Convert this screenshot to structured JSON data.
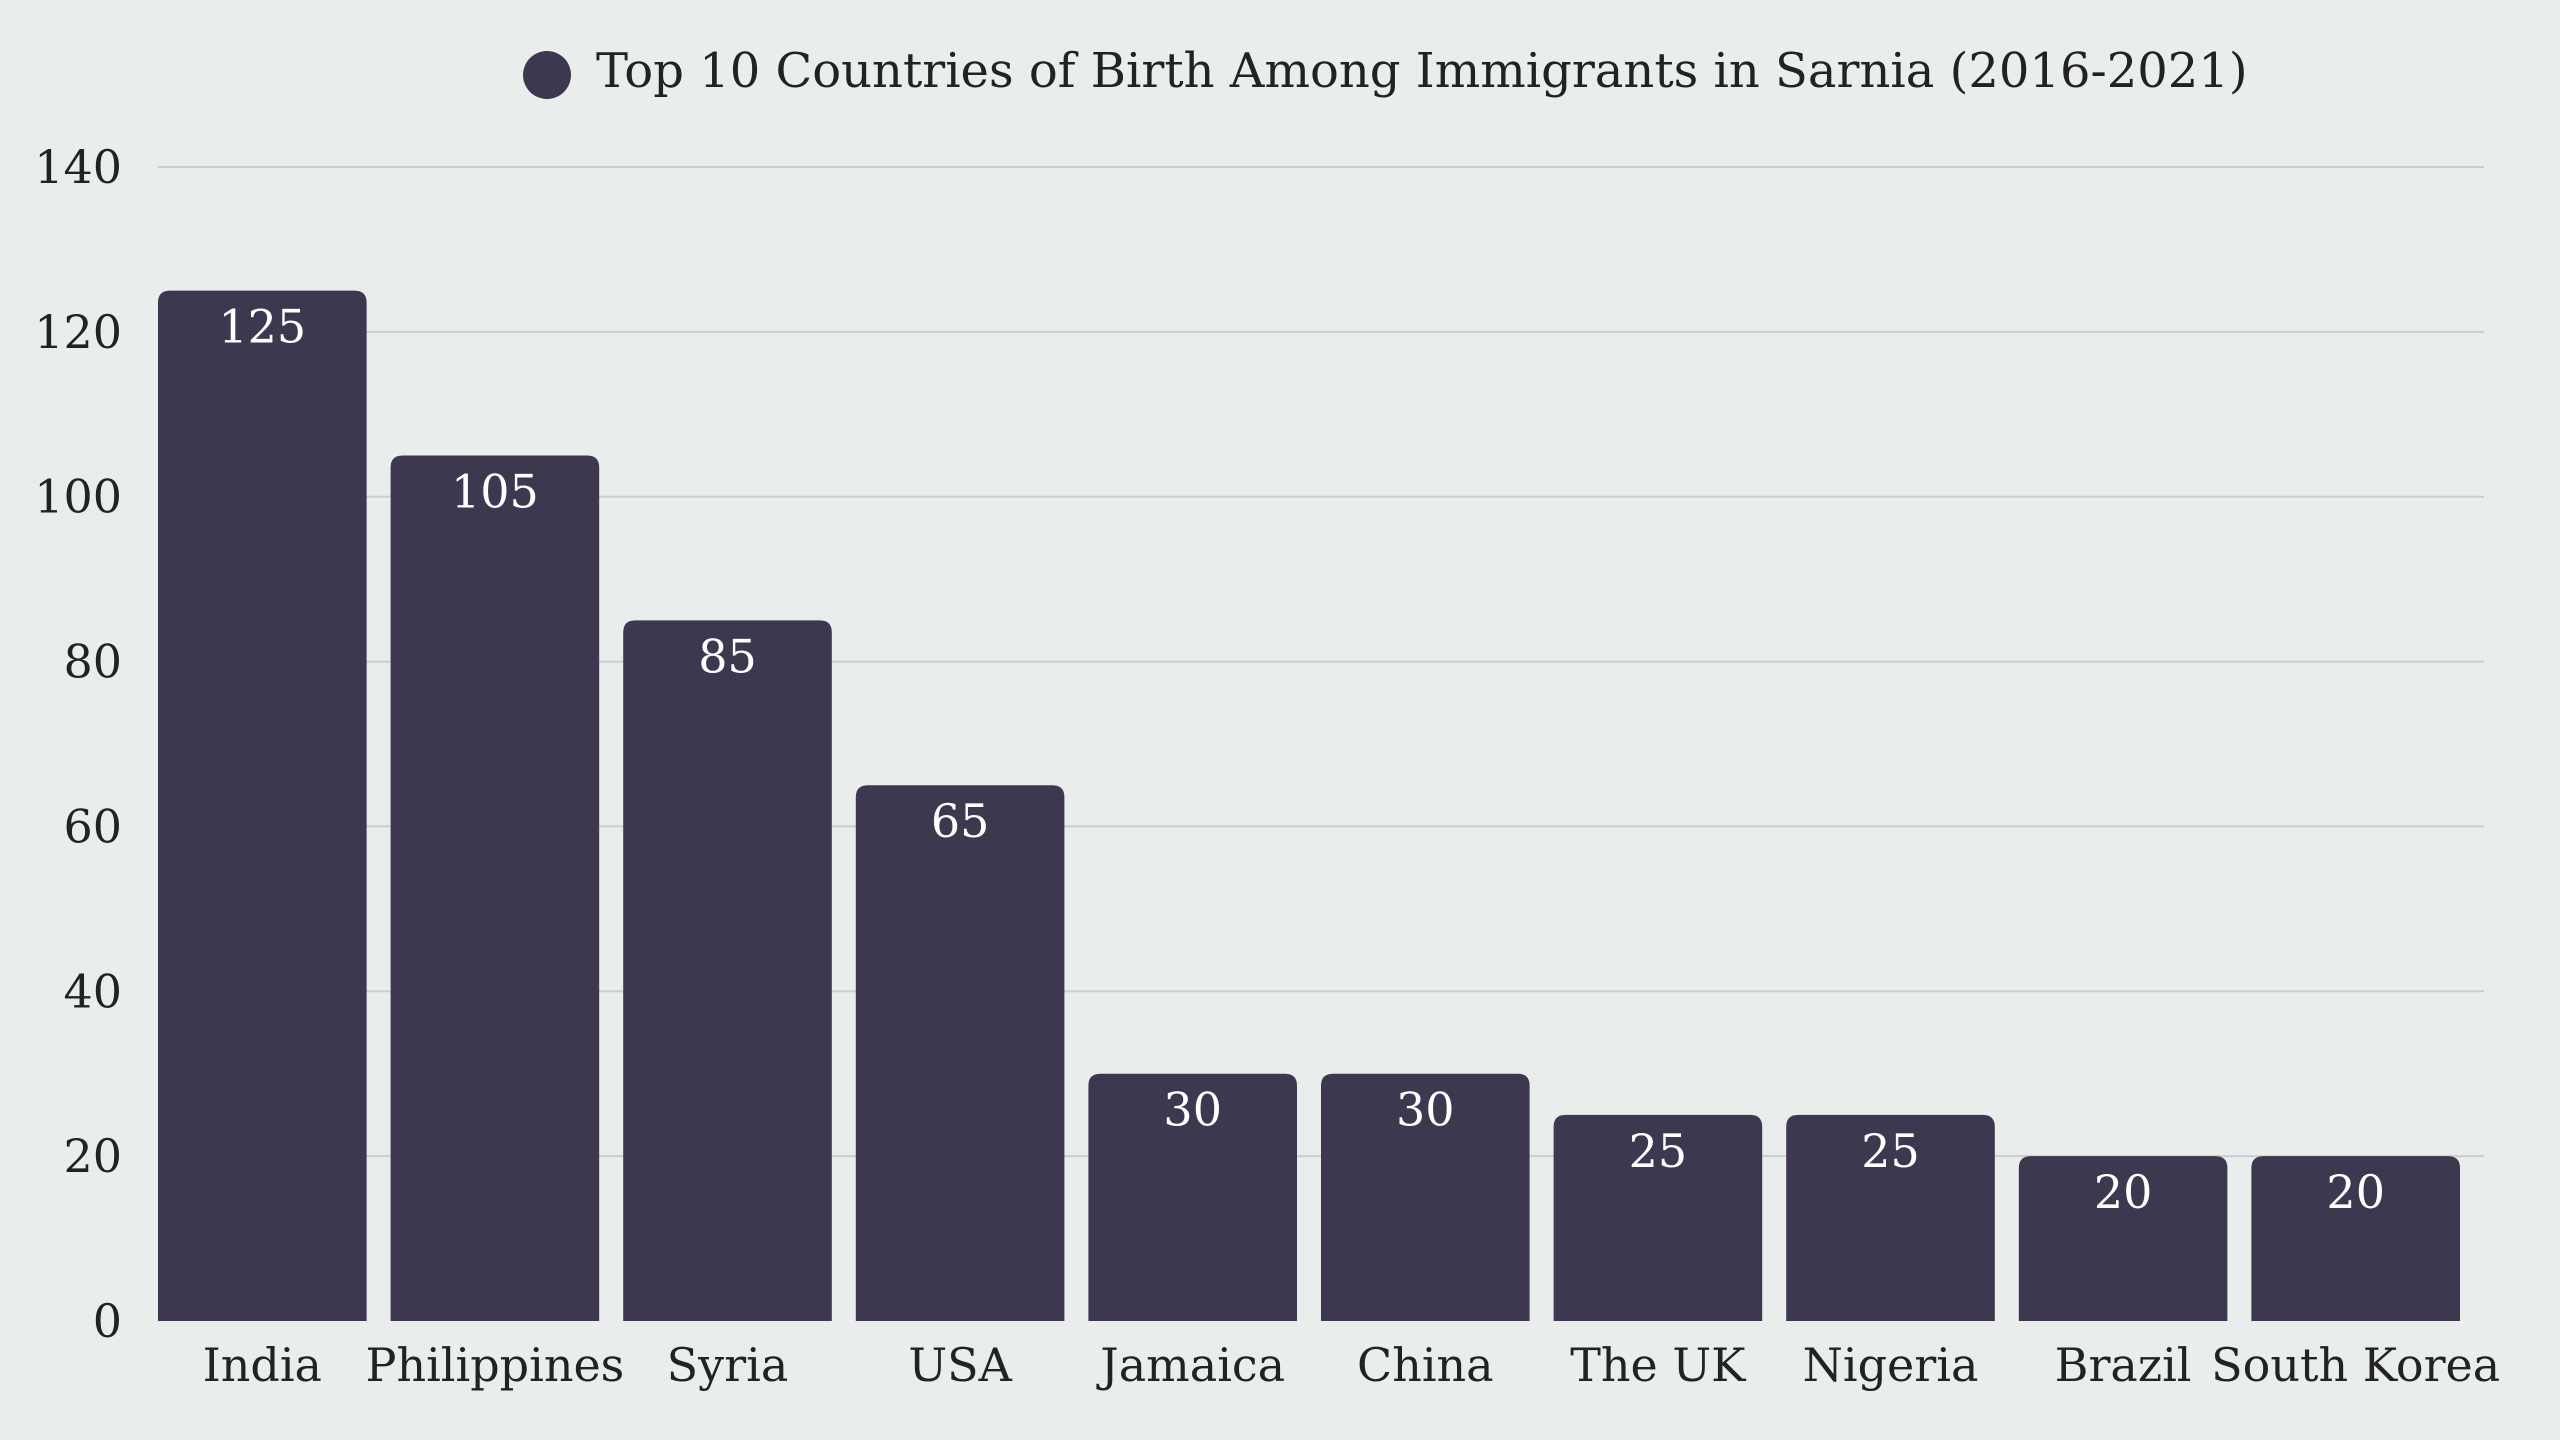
{
  "colors": {
    "background": "#e9eeed",
    "bar": "#3d3850",
    "grid": "#c9cfcf",
    "text": "#222222",
    "value_label": "#ffffff"
  },
  "chart_data": {
    "type": "bar",
    "title": "Top 10 Countries of Birth Among Immigrants in Sarnia (2016-2021)",
    "xlabel": "",
    "ylabel": "",
    "ylim": [
      0,
      140
    ],
    "yticks": [
      0,
      20,
      40,
      60,
      80,
      100,
      120,
      140
    ],
    "grid": true,
    "legend_position": "top-center",
    "categories": [
      "India",
      "Philippines",
      "Syria",
      "USA",
      "Jamaica",
      "China",
      "The UK",
      "Nigeria",
      "Brazil",
      "South Korea"
    ],
    "series": [
      {
        "name": "Top 10 Countries of Birth Among Immigrants in Sarnia (2016-2021)",
        "values": [
          125,
          105,
          85,
          65,
          30,
          30,
          25,
          25,
          20,
          20
        ]
      }
    ]
  }
}
